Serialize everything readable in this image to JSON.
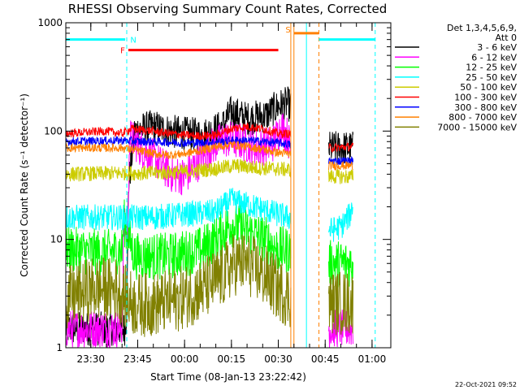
{
  "chart_data": {
    "type": "line",
    "title": "RHESSI Observing Summary Count Rates, Corrected",
    "xlabel": "Start Time (08-Jan-13 23:22:42)",
    "ylabel": "Corrected Count Rate (s⁻¹ detector⁻¹)",
    "ylog": true,
    "xlim_min": [
      -8,
      96
    ],
    "ylim": [
      1,
      1000
    ],
    "x_ticks": [
      {
        "min": 0,
        "label": "23:30"
      },
      {
        "min": 15,
        "label": "23:45"
      },
      {
        "min": 30,
        "label": "00:00"
      },
      {
        "min": 45,
        "label": "00:15"
      },
      {
        "min": 60,
        "label": "00:30"
      },
      {
        "min": 75,
        "label": "00:45"
      },
      {
        "min": 90,
        "label": "01:00"
      }
    ],
    "y_ticks": [
      {
        "value": 1,
        "label": "1"
      },
      {
        "value": 10,
        "label": "10"
      },
      {
        "value": 100,
        "label": "100"
      },
      {
        "value": 1000,
        "label": "1000"
      }
    ],
    "legend": {
      "position": "top-right",
      "header": [
        "Det 1,3,4,5,6,9,",
        "Att 0"
      ],
      "entries": [
        {
          "label": "3 - 6 keV",
          "color": "#000000"
        },
        {
          "label": "6 - 12 keV",
          "color": "#ff00ff"
        },
        {
          "label": "12 - 25 keV",
          "color": "#00ff00"
        },
        {
          "label": "25 - 50 keV",
          "color": "#00ffff"
        },
        {
          "label": "50 - 100 keV",
          "color": "#cccc00"
        },
        {
          "label": "100 - 300 keV",
          "color": "#ff0000"
        },
        {
          "label": "300 - 800 keV",
          "color": "#0000ff"
        },
        {
          "label": "800 - 7000 keV",
          "color": "#ff8000"
        },
        {
          "label": "7000 - 15000 keV",
          "color": "#808000"
        }
      ]
    },
    "flags": [
      {
        "label": "N",
        "color": "#00ffff",
        "segments": [
          [
            -8,
            11
          ],
          [
            73,
            91
          ]
        ],
        "level": 700
      },
      {
        "label": "F",
        "color": "#ff0000",
        "segments": [
          [
            12,
            60
          ]
        ],
        "level": 560
      },
      {
        "label": "S",
        "color": "#ff8000",
        "segments": [
          [
            65,
            73
          ]
        ],
        "level": 800
      }
    ],
    "vlines": [
      {
        "min": 11.5,
        "color": "#00ffff",
        "style": "dashed"
      },
      {
        "min": 64,
        "color": "#ff8000",
        "style": "solid"
      },
      {
        "min": 65,
        "color": "#ff8000",
        "style": "solid"
      },
      {
        "min": 69,
        "color": "#00ffff",
        "style": "solid"
      },
      {
        "min": 73,
        "color": "#ff8000",
        "style": "dashed"
      },
      {
        "min": 91,
        "color": "#00ffff",
        "style": "dashed"
      }
    ],
    "gap_min": [
      64,
      76
    ],
    "series": [
      {
        "name": "3 - 6 keV",
        "color": "#000000",
        "noise": 0.16,
        "points": [
          [
            -8,
            1.5
          ],
          [
            11,
            1.5
          ],
          [
            11.6,
            2.5
          ],
          [
            12,
            30
          ],
          [
            14,
            100
          ],
          [
            20,
            110
          ],
          [
            25,
            100
          ],
          [
            30,
            95
          ],
          [
            36,
            92
          ],
          [
            42,
            110
          ],
          [
            45,
            150
          ],
          [
            50,
            130
          ],
          [
            56,
            140
          ],
          [
            60,
            170
          ],
          [
            63,
            180
          ],
          [
            76,
            70
          ],
          [
            84,
            70
          ]
        ]
      },
      {
        "name": "6 - 12 keV",
        "color": "#ff00ff",
        "noise": 0.18,
        "points": [
          [
            -8,
            1.5
          ],
          [
            10,
            1.5
          ],
          [
            10.5,
            13
          ],
          [
            12,
            13
          ],
          [
            12.3,
            90
          ],
          [
            16,
            70
          ],
          [
            22,
            50
          ],
          [
            26,
            40
          ],
          [
            30,
            38
          ],
          [
            34,
            50
          ],
          [
            38,
            70
          ],
          [
            43,
            85
          ],
          [
            48,
            80
          ],
          [
            53,
            70
          ],
          [
            58,
            75
          ],
          [
            61,
            110
          ],
          [
            63,
            90
          ],
          [
            76,
            1.5
          ],
          [
            84,
            1.5
          ]
        ]
      },
      {
        "name": "12 - 25 keV",
        "color": "#00ff00",
        "noise": 0.22,
        "points": [
          [
            -8,
            8
          ],
          [
            5,
            7.5
          ],
          [
            10,
            8
          ],
          [
            10.5,
            15
          ],
          [
            14,
            7
          ],
          [
            25,
            7
          ],
          [
            35,
            8
          ],
          [
            40,
            10
          ],
          [
            45,
            14
          ],
          [
            50,
            12
          ],
          [
            56,
            10
          ],
          [
            60,
            8
          ],
          [
            63,
            8
          ],
          [
            76,
            6
          ],
          [
            84,
            6
          ]
        ]
      },
      {
        "name": "25 - 50 keV",
        "color": "#00ffff",
        "noise": 0.12,
        "points": [
          [
            -8,
            16
          ],
          [
            10,
            16
          ],
          [
            20,
            16
          ],
          [
            30,
            17
          ],
          [
            40,
            18
          ],
          [
            45,
            23
          ],
          [
            50,
            21
          ],
          [
            55,
            19
          ],
          [
            60,
            17
          ],
          [
            63,
            16
          ],
          [
            76,
            12
          ],
          [
            80,
            13
          ],
          [
            83,
            17
          ],
          [
            84,
            22
          ]
        ]
      },
      {
        "name": "50 - 100 keV",
        "color": "#cccc00",
        "noise": 0.07,
        "points": [
          [
            -8,
            40
          ],
          [
            10,
            41
          ],
          [
            20,
            41
          ],
          [
            30,
            42
          ],
          [
            40,
            45
          ],
          [
            46,
            48
          ],
          [
            52,
            46
          ],
          [
            58,
            45
          ],
          [
            63,
            44
          ],
          [
            76,
            38
          ],
          [
            84,
            38
          ]
        ]
      },
      {
        "name": "100 - 300 keV",
        "color": "#ff0000",
        "noise": 0.04,
        "points": [
          [
            -8,
            95
          ],
          [
            5,
            100
          ],
          [
            10,
            95
          ],
          [
            13,
            105
          ],
          [
            20,
            100
          ],
          [
            25,
            95
          ],
          [
            30,
            92
          ],
          [
            35,
            90
          ],
          [
            40,
            92
          ],
          [
            45,
            105
          ],
          [
            50,
            110
          ],
          [
            55,
            105
          ],
          [
            60,
            95
          ],
          [
            63,
            95
          ],
          [
            76,
            70
          ],
          [
            84,
            72
          ]
        ]
      },
      {
        "name": "300 - 800 keV",
        "color": "#0000ff",
        "noise": 0.04,
        "points": [
          [
            -8,
            80
          ],
          [
            10,
            82
          ],
          [
            15,
            80
          ],
          [
            20,
            80
          ],
          [
            25,
            79
          ],
          [
            30,
            78
          ],
          [
            35,
            78
          ],
          [
            40,
            79
          ],
          [
            45,
            82
          ],
          [
            50,
            82
          ],
          [
            55,
            80
          ],
          [
            60,
            78
          ],
          [
            63,
            76
          ],
          [
            76,
            53
          ],
          [
            84,
            53
          ]
        ]
      },
      {
        "name": "800 - 7000 keV",
        "color": "#ff8000",
        "noise": 0.04,
        "points": [
          [
            -8,
            70
          ],
          [
            10,
            70
          ],
          [
            15,
            66
          ],
          [
            20,
            62
          ],
          [
            25,
            60
          ],
          [
            30,
            62
          ],
          [
            35,
            66
          ],
          [
            40,
            72
          ],
          [
            45,
            75
          ],
          [
            50,
            72
          ],
          [
            55,
            68
          ],
          [
            60,
            63
          ],
          [
            63,
            62
          ],
          [
            76,
            48
          ],
          [
            84,
            48
          ]
        ]
      },
      {
        "name": "7000 - 15000 keV",
        "color": "#808000",
        "noise": 0.3,
        "points": [
          [
            -8,
            2.8
          ],
          [
            0,
            3.5
          ],
          [
            8,
            3.5
          ],
          [
            14,
            2.5
          ],
          [
            20,
            2.5
          ],
          [
            28,
            2.8
          ],
          [
            36,
            3.5
          ],
          [
            42,
            4.5
          ],
          [
            46,
            6
          ],
          [
            50,
            6
          ],
          [
            56,
            4.5
          ],
          [
            60,
            3.5
          ],
          [
            63,
            3
          ],
          [
            76,
            2.6
          ],
          [
            84,
            2.6
          ]
        ]
      }
    ]
  },
  "footer": {
    "timestamp": "22-Oct-2021 09:52"
  }
}
